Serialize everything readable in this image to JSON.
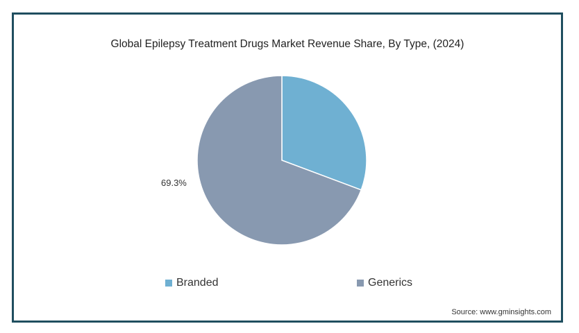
{
  "chart_data": {
    "type": "pie",
    "title": "Global Epilepsy Treatment Drugs Market Revenue Share, By Type, (2024)",
    "categories": [
      "Branded",
      "Generics"
    ],
    "values": [
      30.7,
      69.3
    ],
    "data_labels": [
      "",
      "69.3%"
    ],
    "colors": [
      "#6fb0d2",
      "#8899b0"
    ],
    "legend_position": "bottom",
    "source": "Source: www.gminsights.com"
  }
}
